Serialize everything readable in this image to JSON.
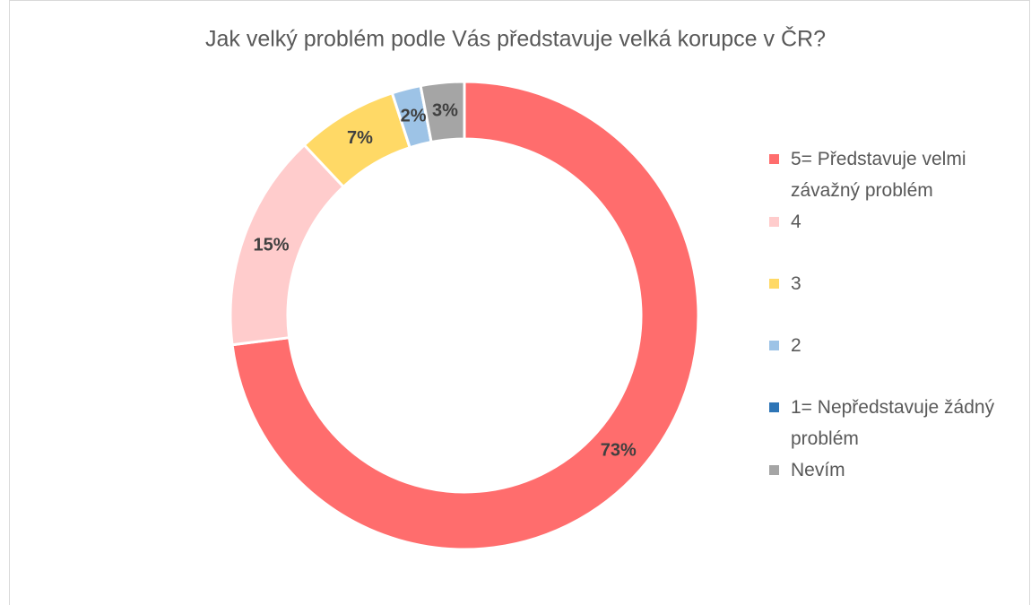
{
  "chart_data": {
    "type": "donut",
    "title": "Jak velký problém podle Vás představuje velká korupce v ČR?",
    "categories": [
      "5= Představuje velmi závažný problém",
      "4",
      "3",
      "2",
      "1= Nepředstavuje žádný problém",
      "Nevím"
    ],
    "values": [
      73,
      15,
      7,
      2,
      0,
      3
    ],
    "value_labels": [
      "73%",
      "15%",
      "7%",
      "2%",
      null,
      "3%"
    ],
    "colors": [
      "#ff6d6d",
      "#ffcccc",
      "#ffd966",
      "#9dc3e6",
      "#2e75b6",
      "#a5a5a5"
    ],
    "legend": "right"
  }
}
